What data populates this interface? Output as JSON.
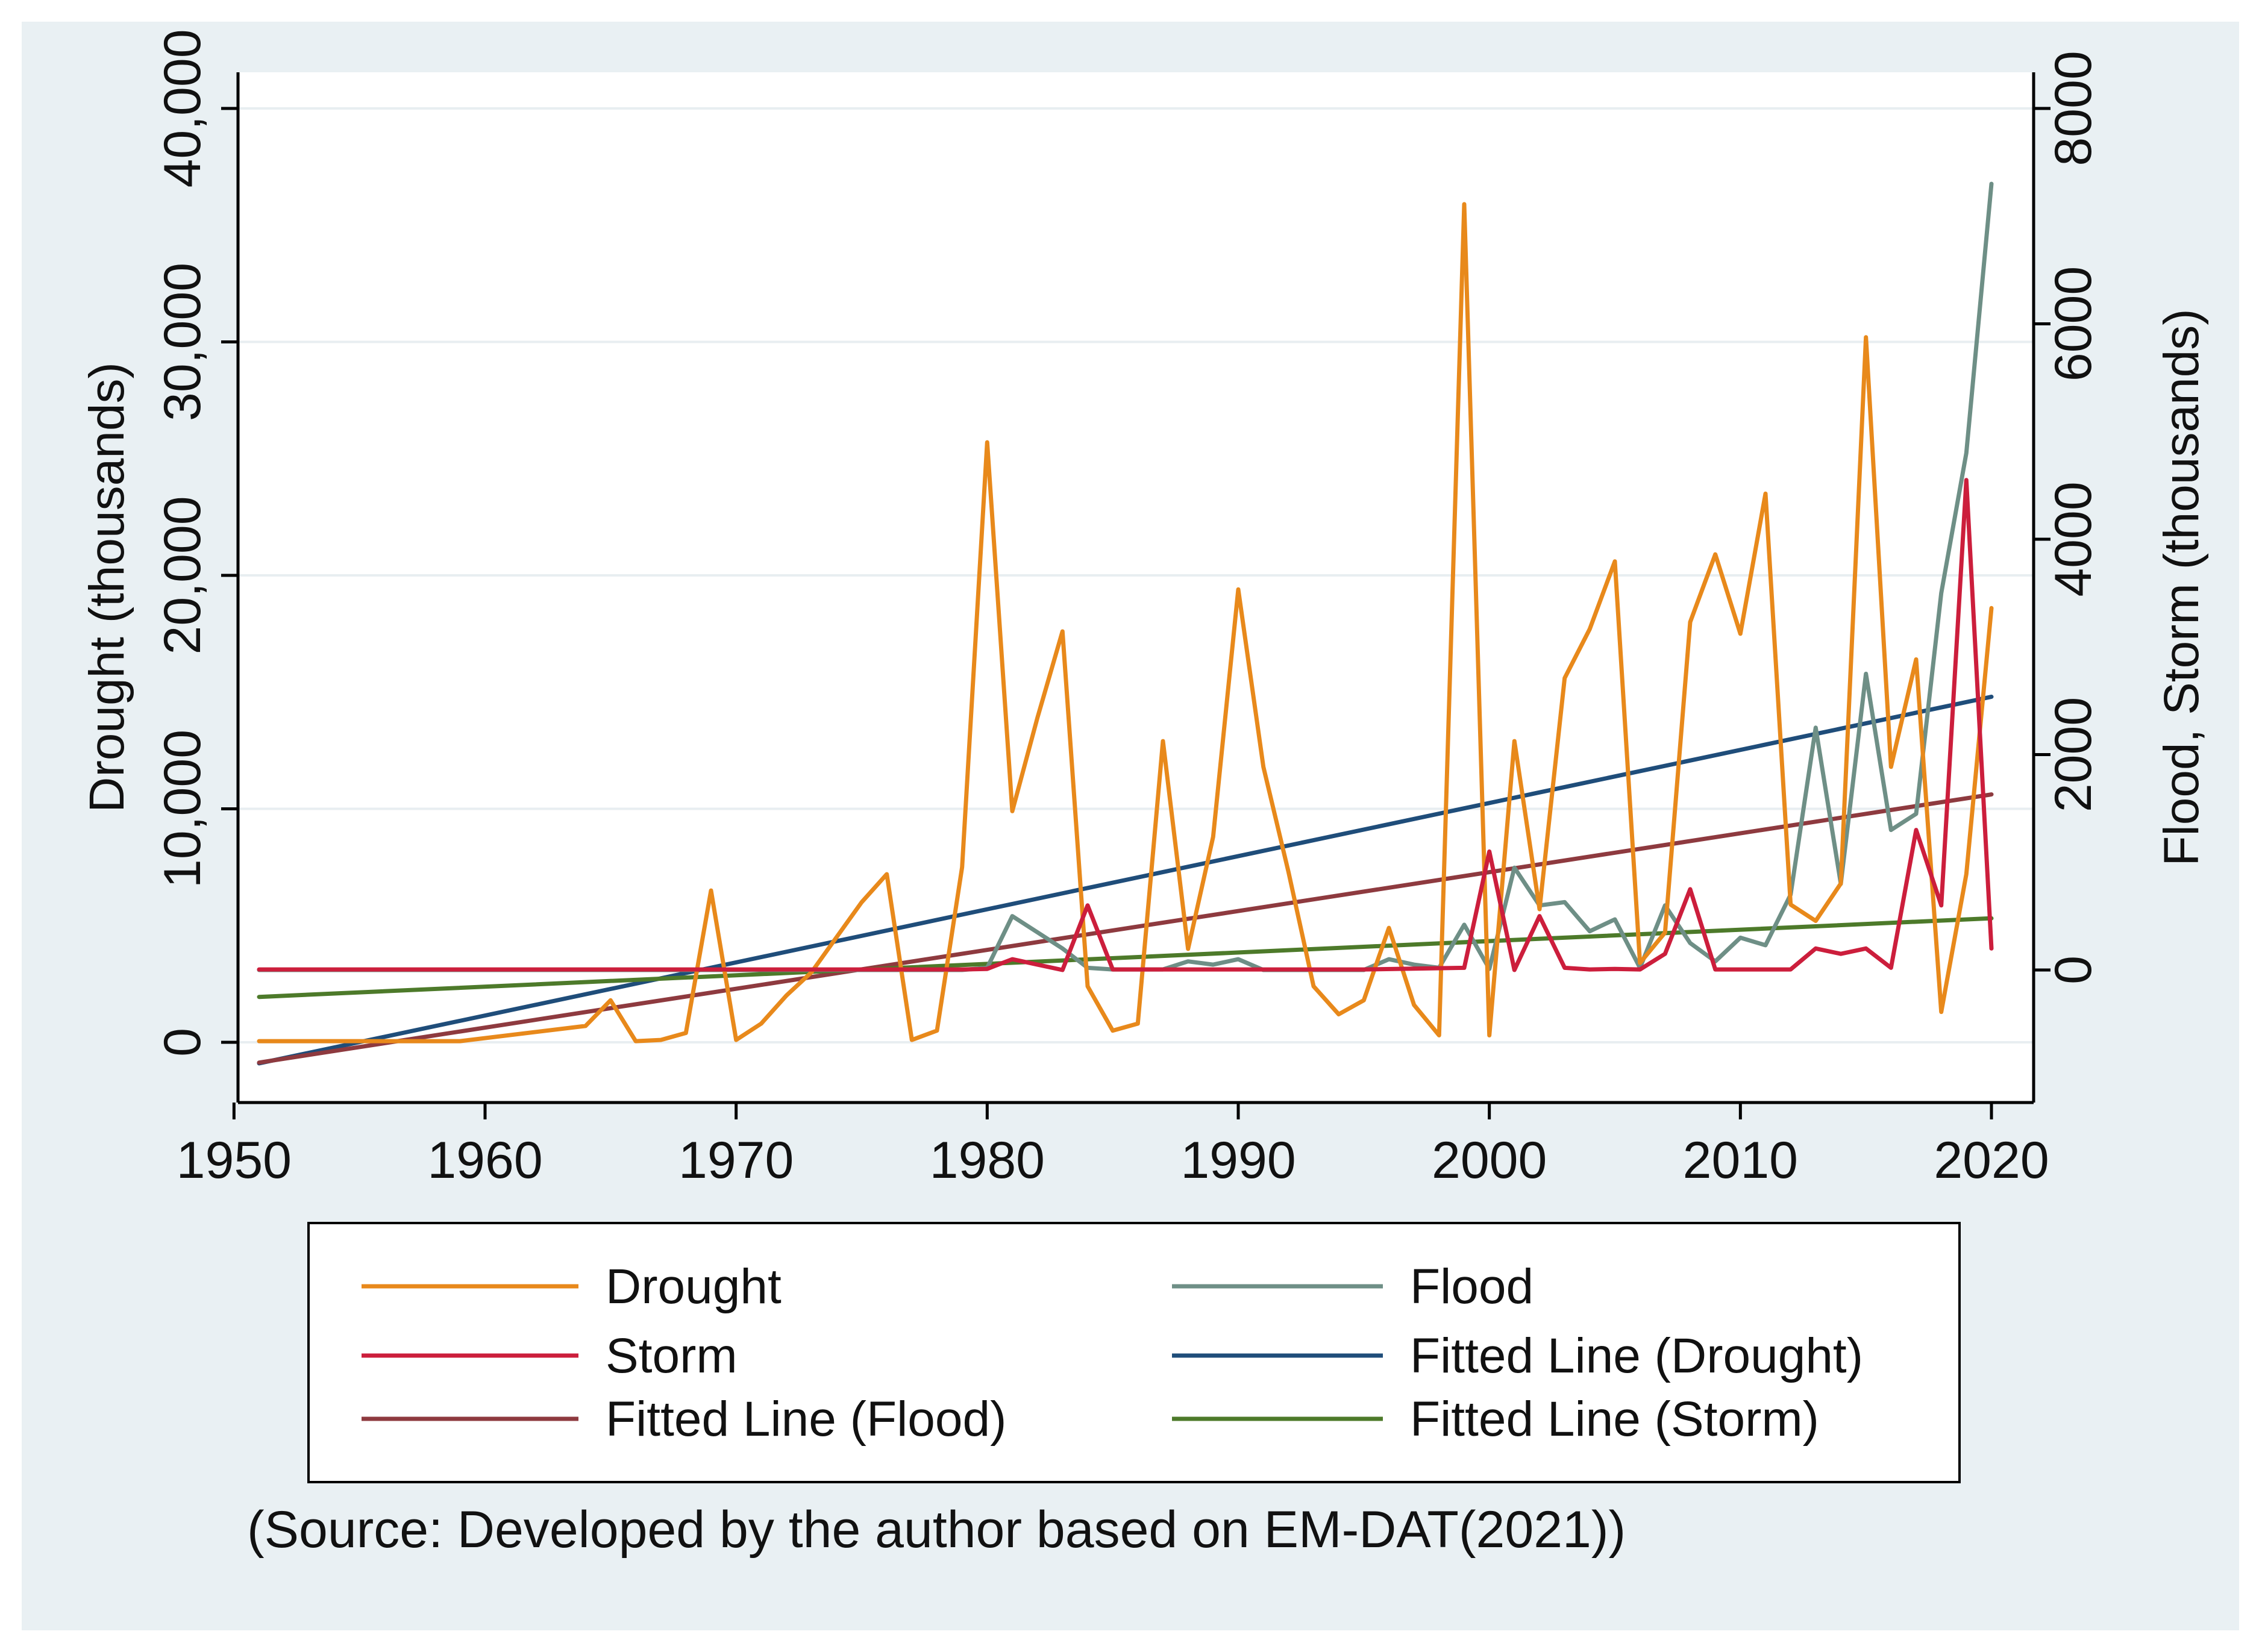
{
  "chart_data": {
    "type": "line",
    "title": "",
    "xlabel": "",
    "ylabel": "Drought (thousands)",
    "y2label": "Flood, Storm (thousands)",
    "xlim": [
      1951,
      2020
    ],
    "ylim": [
      -1000,
      40000
    ],
    "y2lim": [
      -800,
      8000
    ],
    "xticks": [
      1950,
      1960,
      1970,
      1980,
      1990,
      2000,
      2010,
      2020
    ],
    "xtick_labels": [
      "1950",
      "1960",
      "1970",
      "1980",
      "1990",
      "2000",
      "2010",
      "2020"
    ],
    "yticks": [
      0,
      10000,
      20000,
      30000,
      40000
    ],
    "ytick_labels": [
      "0",
      "10,000",
      "20,000",
      "30,000",
      "40,000"
    ],
    "y2ticks": [
      0,
      2000,
      4000,
      6000,
      8000
    ],
    "y2tick_labels": [
      "0",
      "2000",
      "4000",
      "6000",
      "8000"
    ],
    "grid": "horizontal",
    "legend_position": "bottom",
    "series": [
      {
        "name": "Drought",
        "label": "Drought",
        "axis": "left",
        "color": "#e8891b",
        "points": [
          [
            1951,
            50
          ],
          [
            1955,
            50
          ],
          [
            1959,
            50
          ],
          [
            1964,
            700
          ],
          [
            1965,
            1800
          ],
          [
            1966,
            50
          ],
          [
            1967,
            100
          ],
          [
            1968,
            400
          ],
          [
            1969,
            6500
          ],
          [
            1970,
            100
          ],
          [
            1971,
            800
          ],
          [
            1972,
            2000
          ],
          [
            1973,
            3000
          ],
          [
            1974,
            4500
          ],
          [
            1975,
            6000
          ],
          [
            1976,
            7200
          ],
          [
            1977,
            100
          ],
          [
            1978,
            500
          ],
          [
            1979,
            7500
          ],
          [
            1980,
            25700
          ],
          [
            1981,
            9900
          ],
          [
            1982,
            13900
          ],
          [
            1983,
            17600
          ],
          [
            1984,
            2400
          ],
          [
            1985,
            500
          ],
          [
            1986,
            800
          ],
          [
            1987,
            12900
          ],
          [
            1988,
            4000
          ],
          [
            1989,
            8800
          ],
          [
            1990,
            19400
          ],
          [
            1991,
            11800
          ],
          [
            1992,
            7300
          ],
          [
            1993,
            2400
          ],
          [
            1994,
            1200
          ],
          [
            1995,
            1800
          ],
          [
            1996,
            4900
          ],
          [
            1997,
            1600
          ],
          [
            1998,
            300
          ],
          [
            1999,
            35900
          ],
          [
            2000,
            300
          ],
          [
            2001,
            12900
          ],
          [
            2002,
            5700
          ],
          [
            2003,
            15600
          ],
          [
            2004,
            17700
          ],
          [
            2005,
            20600
          ],
          [
            2006,
            3400
          ],
          [
            2007,
            4700
          ],
          [
            2008,
            18000
          ],
          [
            2009,
            20900
          ],
          [
            2010,
            17500
          ],
          [
            2011,
            23500
          ],
          [
            2012,
            5900
          ],
          [
            2013,
            5200
          ],
          [
            2014,
            6800
          ],
          [
            2015,
            30200
          ],
          [
            2016,
            11800
          ],
          [
            2017,
            16400
          ],
          [
            2018,
            1300
          ],
          [
            2019,
            7200
          ],
          [
            2020,
            18600
          ]
        ]
      },
      {
        "name": "Flood",
        "label": "Flood",
        "axis": "right",
        "color": "#6e8f86",
        "points": [
          [
            1951,
            0
          ],
          [
            1979,
            0
          ],
          [
            1980,
            20
          ],
          [
            1981,
            500
          ],
          [
            1982,
            350
          ],
          [
            1983,
            200
          ],
          [
            1984,
            20
          ],
          [
            1985,
            5
          ],
          [
            1987,
            5
          ],
          [
            1988,
            80
          ],
          [
            1989,
            50
          ],
          [
            1990,
            100
          ],
          [
            1991,
            0
          ],
          [
            1995,
            0
          ],
          [
            1996,
            100
          ],
          [
            1997,
            50
          ],
          [
            1998,
            20
          ],
          [
            1999,
            420
          ],
          [
            2000,
            10
          ],
          [
            2001,
            950
          ],
          [
            2002,
            600
          ],
          [
            2003,
            630
          ],
          [
            2004,
            360
          ],
          [
            2005,
            470
          ],
          [
            2006,
            20
          ],
          [
            2007,
            600
          ],
          [
            2008,
            250
          ],
          [
            2009,
            80
          ],
          [
            2010,
            300
          ],
          [
            2011,
            230
          ],
          [
            2012,
            700
          ],
          [
            2013,
            2250
          ],
          [
            2014,
            800
          ],
          [
            2015,
            2750
          ],
          [
            2016,
            1300
          ],
          [
            2017,
            1450
          ],
          [
            2018,
            3500
          ],
          [
            2019,
            4800
          ],
          [
            2020,
            7300
          ]
        ]
      },
      {
        "name": "Storm",
        "label": "Storm",
        "axis": "right",
        "color": "#cc1e3c",
        "points": [
          [
            1951,
            5
          ],
          [
            1979,
            5
          ],
          [
            1980,
            10
          ],
          [
            1981,
            100
          ],
          [
            1982,
            50
          ],
          [
            1983,
            0
          ],
          [
            1984,
            600
          ],
          [
            1985,
            5
          ],
          [
            1986,
            5
          ],
          [
            1990,
            5
          ],
          [
            1995,
            5
          ],
          [
            1999,
            20
          ],
          [
            2000,
            1100
          ],
          [
            2001,
            0
          ],
          [
            2002,
            500
          ],
          [
            2003,
            20
          ],
          [
            2004,
            5
          ],
          [
            2005,
            10
          ],
          [
            2006,
            5
          ],
          [
            2007,
            150
          ],
          [
            2008,
            750
          ],
          [
            2009,
            5
          ],
          [
            2010,
            5
          ],
          [
            2011,
            5
          ],
          [
            2012,
            5
          ],
          [
            2013,
            200
          ],
          [
            2014,
            150
          ],
          [
            2015,
            200
          ],
          [
            2016,
            20
          ],
          [
            2017,
            1300
          ],
          [
            2018,
            600
          ],
          [
            2019,
            4550
          ],
          [
            2020,
            200
          ]
        ]
      },
      {
        "name": "Fitted Line (Drought)",
        "label": "Fitted Line (Drought)",
        "axis": "left",
        "color": "#1f4d7a",
        "points": [
          [
            1951,
            -900
          ],
          [
            2020,
            14800
          ]
        ]
      },
      {
        "name": "Fitted Line (Flood)",
        "label": "Fitted Line (Flood)",
        "axis": "right",
        "color": "#8e3a3f",
        "points": [
          [
            1951,
            -860
          ],
          [
            2020,
            1630
          ]
        ]
      },
      {
        "name": "Fitted Line (Storm)",
        "label": "Fitted Line (Storm)",
        "axis": "right",
        "color": "#4d7a2a",
        "points": [
          [
            1951,
            -250
          ],
          [
            2020,
            480
          ]
        ]
      }
    ],
    "legend_order": [
      "Drought",
      "Flood",
      "Storm",
      "Fitted Line (Drought)",
      "Fitted Line (Flood)",
      "Fitted Line (Storm)"
    ]
  },
  "source_note": "(Source: Developed by the author based on EM-DAT(2021))"
}
